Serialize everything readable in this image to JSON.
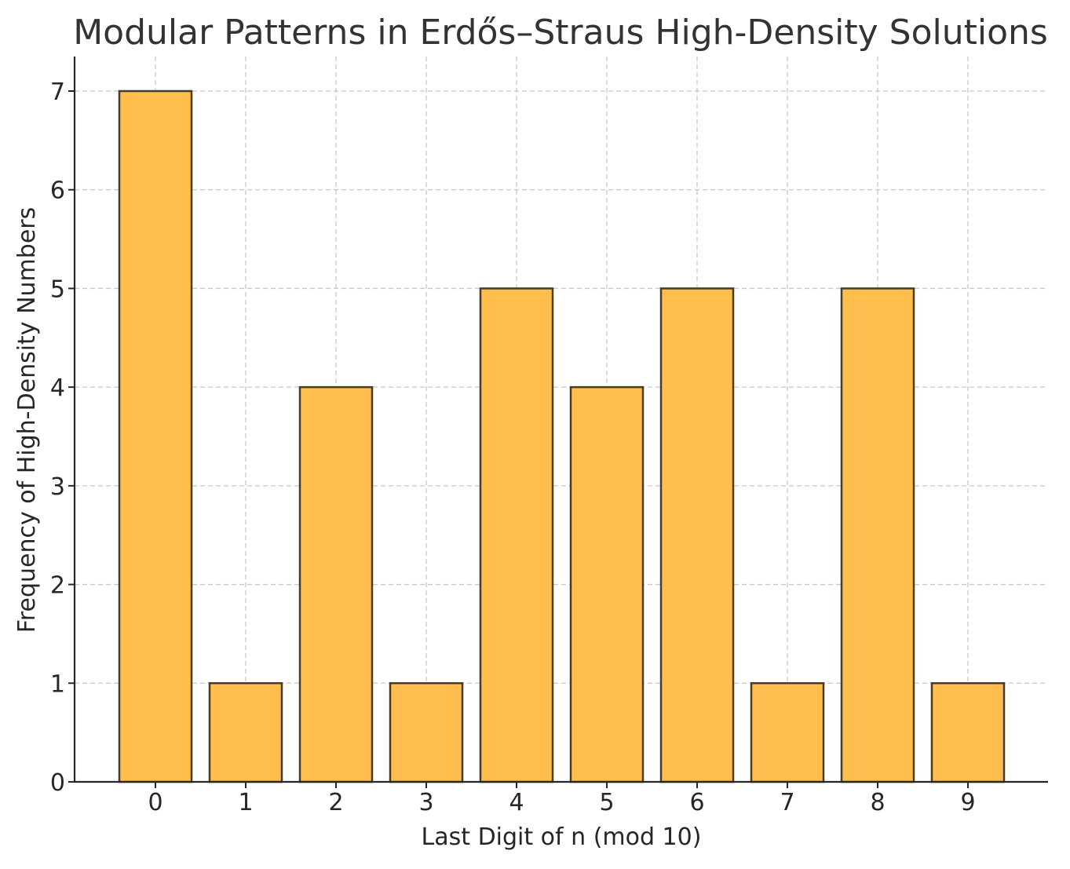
{
  "chart_data": {
    "type": "bar",
    "title": "Modular Patterns in Erdős–Straus High-Density Solutions",
    "xlabel": "Last Digit of n (mod 10)",
    "ylabel": "Frequency of High-Density Numbers",
    "categories": [
      "0",
      "1",
      "2",
      "3",
      "4",
      "5",
      "6",
      "7",
      "8",
      "9"
    ],
    "values": [
      7,
      1,
      4,
      1,
      5,
      4,
      5,
      1,
      5,
      1
    ],
    "ylim": [
      0,
      7.35
    ],
    "yticks": [
      "0",
      "1",
      "2",
      "3",
      "4",
      "5",
      "6",
      "7"
    ],
    "grid": true,
    "colors": {
      "bar_fill": "#ffbe4d",
      "bar_edge": "#4a3c24"
    }
  }
}
